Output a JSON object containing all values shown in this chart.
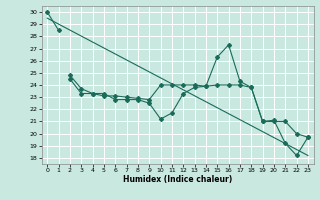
{
  "xlabel": "Humidex (Indice chaleur)",
  "bg_color": "#c9e8e0",
  "grid_color": "#ffffff",
  "line_color": "#1a6b5a",
  "xlim": [
    -0.5,
    23.5
  ],
  "ylim": [
    17.5,
    30.5
  ],
  "yticks": [
    18,
    19,
    20,
    21,
    22,
    23,
    24,
    25,
    26,
    27,
    28,
    29,
    30
  ],
  "xticks": [
    0,
    1,
    2,
    3,
    4,
    5,
    6,
    7,
    8,
    9,
    10,
    11,
    12,
    13,
    14,
    15,
    16,
    17,
    18,
    19,
    20,
    21,
    22,
    23
  ],
  "series1_x": [
    0,
    1
  ],
  "series1_y": [
    30,
    28.5
  ],
  "series2_x": [
    2,
    3,
    4,
    5,
    6,
    7,
    8,
    9,
    10,
    11,
    12,
    13,
    14,
    15,
    16,
    17,
    18,
    19,
    20,
    21,
    22,
    23
  ],
  "series2_y": [
    24.8,
    23.7,
    23.3,
    23.3,
    22.8,
    22.8,
    22.8,
    22.5,
    21.2,
    21.7,
    23.3,
    23.8,
    23.9,
    26.3,
    27.3,
    24.3,
    23.8,
    21.0,
    21.1,
    19.2,
    18.2,
    19.7
  ],
  "series3_x": [
    2,
    3,
    4,
    5,
    6,
    7,
    8,
    9,
    10,
    11,
    12,
    13,
    14,
    15,
    16,
    17,
    18,
    19,
    20,
    21,
    22,
    23
  ],
  "series3_y": [
    24.5,
    23.3,
    23.3,
    23.1,
    23.1,
    23.0,
    22.9,
    22.8,
    24.0,
    24.0,
    24.0,
    24.0,
    23.9,
    24.0,
    24.0,
    24.0,
    23.8,
    21.0,
    21.0,
    21.0,
    20.0,
    19.7
  ],
  "series4_x": [
    0,
    23
  ],
  "series4_y": [
    29.5,
    18.2
  ]
}
